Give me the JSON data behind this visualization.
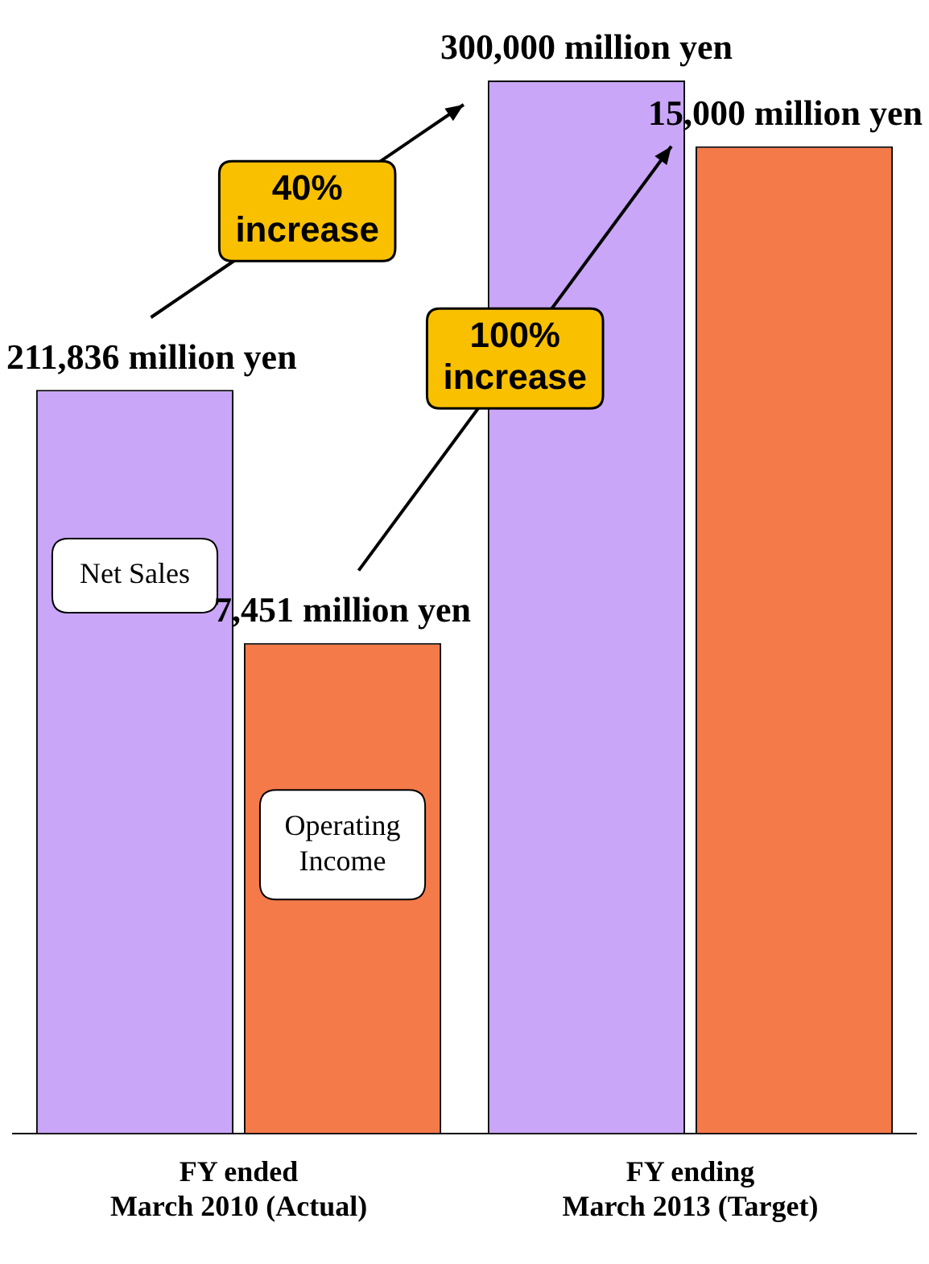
{
  "chart_data": {
    "type": "bar",
    "categories": [
      "FY ended\nMarch 2010 (Actual)",
      "FY ending\nMarch 2013 (Target)"
    ],
    "series": [
      {
        "name": "Net Sales",
        "color": "#c9a6f7",
        "values": [
          211836,
          300000
        ],
        "value_labels": [
          "211,836 million yen",
          "300,000 million yen"
        ]
      },
      {
        "name": "Operating Income",
        "color": "#f47a4a",
        "axis": "y2",
        "values": [
          7451,
          15000
        ],
        "value_labels": [
          "7,451 million yen",
          "15,000 million yen"
        ]
      }
    ],
    "annotations": [
      "40%\nincrease",
      "100%\nincrease"
    ],
    "legend": false,
    "grid": false,
    "tick_labels": "x"
  }
}
